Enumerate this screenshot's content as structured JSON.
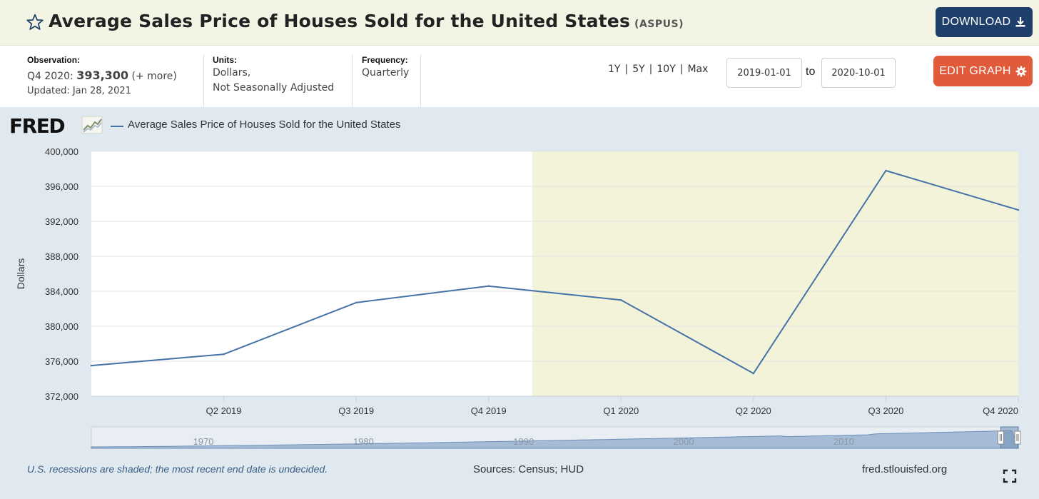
{
  "header": {
    "title": "Average Sales Price of Houses Sold for the United States",
    "series_id": "(ASPUS)",
    "download_label": "DOWNLOAD",
    "star_icon": "star-outline-icon",
    "download_icon": "download-icon"
  },
  "meta": {
    "observation_label": "Observation:",
    "observation_period": "Q4 2020:",
    "observation_value": "393,300",
    "observation_more": "(+ more)",
    "updated": "Updated: Jan 28, 2021",
    "units_label": "Units:",
    "units_line1": "Dollars,",
    "units_line2": "Not Seasonally Adjusted",
    "frequency_label": "Frequency:",
    "frequency_value": "Quarterly"
  },
  "controls": {
    "ranges": [
      "1Y",
      "5Y",
      "10Y",
      "Max"
    ],
    "date_start": "2019-01-01",
    "to_label": "to",
    "date_end": "2020-10-01",
    "edit_label": "EDIT GRAPH",
    "edit_icon": "gear-icon"
  },
  "graph": {
    "logo": "FRED",
    "legend_label": "Average Sales Price of Houses Sold for the United States",
    "footer_note": "U.S. recessions are shaded; the most recent end date is undecided.",
    "sources": "Sources: Census; HUD",
    "url": "fred.stlouisfed.org",
    "fullscreen_icon": "fullscreen-icon"
  },
  "chart_data": {
    "type": "line",
    "ylabel": "Dollars",
    "ylim": [
      372000,
      400000
    ],
    "yticks": [
      "372,000",
      "376,000",
      "380,000",
      "384,000",
      "388,000",
      "392,000",
      "396,000",
      "400,000"
    ],
    "ytick_values": [
      372000,
      376000,
      380000,
      384000,
      388000,
      392000,
      396000,
      400000
    ],
    "xticks": [
      "Q2 2019",
      "Q3 2019",
      "Q4 2019",
      "Q1 2020",
      "Q2 2020",
      "Q3 2020",
      "Q4 2020"
    ],
    "series": [
      {
        "name": "Average Sales Price of Houses Sold for the United States",
        "color": "#4572a7",
        "x": [
          "Q1 2019",
          "Q2 2019",
          "Q3 2019",
          "Q4 2019",
          "Q1 2020",
          "Q2 2020",
          "Q3 2020",
          "Q4 2020"
        ],
        "values": [
          375500,
          376800,
          382700,
          384600,
          383000,
          374600,
          397800,
          393300
        ]
      }
    ],
    "recession": {
      "start": "2020-Q1 (Feb 2020)",
      "end": "undecided",
      "color": "#f3f3da"
    },
    "navigator_labels": [
      "1970",
      "1980",
      "1990",
      "2000",
      "2010"
    ],
    "grid": true
  }
}
